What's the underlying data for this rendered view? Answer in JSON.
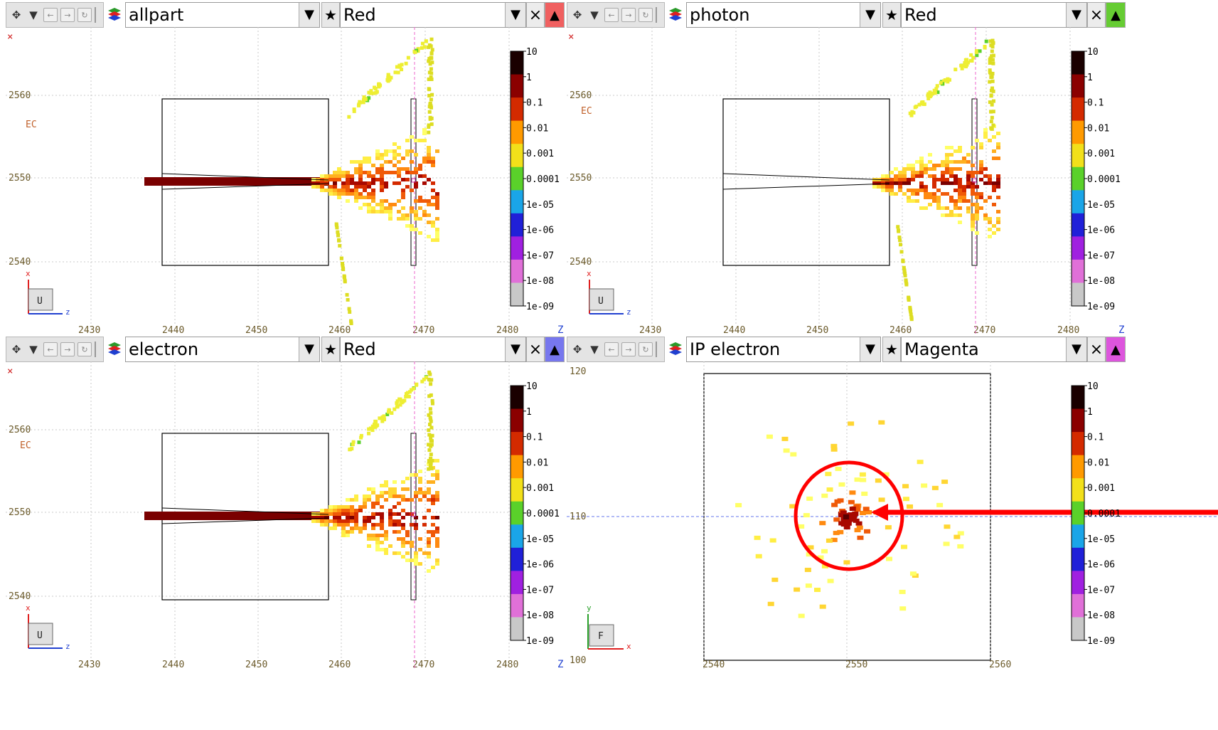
{
  "toolbar": {
    "nav_icons": [
      "move-icon",
      "dropdown-icon",
      "back-icon",
      "forward-icon",
      "reload-icon"
    ]
  },
  "panels": [
    {
      "name": "allpart",
      "color_name": "Red",
      "triangle_color": "#f06060"
    },
    {
      "name": "photon",
      "color_name": "Red",
      "triangle_color": "#66cc33"
    },
    {
      "name": "electron",
      "color_name": "Red",
      "triangle_color": "#7777ee"
    },
    {
      "name": "IP electron",
      "color_name": "Magenta",
      "triangle_color": "#dd55dd"
    }
  ],
  "side_view": {
    "x_ticks": [
      "2430",
      "2440",
      "2450",
      "2460",
      "2470",
      "2480"
    ],
    "y_ticks": [
      "2560",
      "2550",
      "2540"
    ],
    "region_label": "EC",
    "axis_x_letter": "z",
    "axis_y_letter": "x",
    "axis_box_label": "U",
    "z_label": "Z",
    "corner_mark": "×"
  },
  "front_view": {
    "x_ticks": [
      "2540",
      "2550",
      "2560"
    ],
    "y_ticks": [
      "120",
      "110",
      "100"
    ],
    "axis_x_letter": "x",
    "axis_y_letter": "y",
    "axis_box_label": "F"
  },
  "colorbar_labels": [
    "10",
    "1",
    "0.1",
    "0.01",
    "0.001",
    "0.0001",
    "1e-05",
    "1e-06",
    "1e-07",
    "1e-08",
    "1e-09"
  ],
  "colorbar_colors": [
    "#1a0000",
    "#8b0000",
    "#d42a00",
    "#ff9a00",
    "#f2e01a",
    "#5ad12a",
    "#1aa5e8",
    "#2020d8",
    "#a020e0",
    "#e070d8",
    "#c8c8c8"
  ],
  "annotation": {
    "circle_color": "#ff0000",
    "arrow_color": "#ff0000"
  }
}
